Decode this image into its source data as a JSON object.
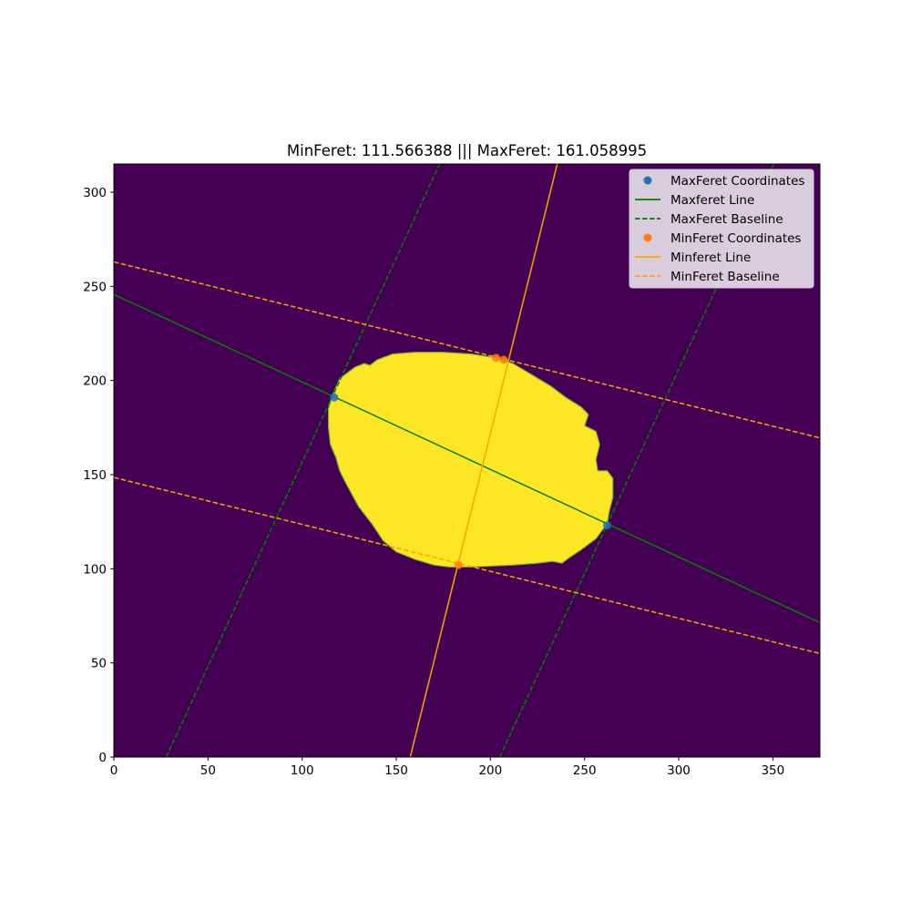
{
  "chart_data": {
    "type": "scatter",
    "title": "MinFeret: 111.566388 ||| MaxFeret: 161.058995",
    "xlabel": "",
    "ylabel": "",
    "xlim": [
      0,
      375
    ],
    "ylim": [
      0,
      315
    ],
    "x_ticks": [
      0,
      50,
      100,
      150,
      200,
      250,
      300,
      350
    ],
    "y_ticks": [
      0,
      50,
      100,
      150,
      200,
      250,
      300
    ],
    "grid": false,
    "legend_position": "top-right",
    "colors": {
      "background": "#440154",
      "region": "#fde725",
      "maxferet_points": "#1f77b4",
      "maxferet_lines": "#008000",
      "minferet_points": "#ff7f0e",
      "minferet_lines": "#ffa500"
    },
    "region_outline": [
      [
        116,
        192
      ],
      [
        120,
        201
      ],
      [
        128,
        207
      ],
      [
        133,
        209
      ],
      [
        136,
        208
      ],
      [
        140,
        211
      ],
      [
        148,
        214
      ],
      [
        160,
        215
      ],
      [
        175,
        215
      ],
      [
        190,
        214
      ],
      [
        203,
        212
      ],
      [
        212,
        209
      ],
      [
        222,
        203
      ],
      [
        232,
        197
      ],
      [
        240,
        191
      ],
      [
        248,
        186
      ],
      [
        252,
        182
      ],
      [
        250,
        176
      ],
      [
        256,
        173
      ],
      [
        258,
        166
      ],
      [
        256,
        158
      ],
      [
        257,
        152
      ],
      [
        262,
        152
      ],
      [
        265,
        148
      ],
      [
        265,
        138
      ],
      [
        263,
        130
      ],
      [
        262,
        124
      ],
      [
        256,
        116
      ],
      [
        248,
        110
      ],
      [
        242,
        106
      ],
      [
        238,
        103
      ],
      [
        233,
        104
      ],
      [
        225,
        103
      ],
      [
        212,
        102
      ],
      [
        190,
        101
      ],
      [
        178,
        101
      ],
      [
        170,
        102
      ],
      [
        160,
        105
      ],
      [
        150,
        109
      ],
      [
        143,
        115
      ],
      [
        137,
        124
      ],
      [
        130,
        133
      ],
      [
        123,
        146
      ],
      [
        120,
        152
      ],
      [
        118,
        159
      ],
      [
        115,
        166
      ],
      [
        114,
        175
      ],
      [
        114,
        185
      ]
    ],
    "series": [
      {
        "name": "MaxFeret Coordinates",
        "kind": "points",
        "points": [
          [
            117,
            191
          ],
          [
            262,
            123
          ]
        ]
      },
      {
        "name": "Maxferet Line",
        "kind": "line",
        "points": [
          [
            0,
            245.7
          ],
          [
            375,
            71.4
          ]
        ]
      },
      {
        "name": "MaxFeret Baseline",
        "kind": "dashed",
        "points": [
          [
            27.8,
            0
          ],
          [
            173,
            315
          ]
        ]
      },
      {
        "name": "MaxFeret Baseline 2",
        "kind": "dashed",
        "points": [
          [
            205,
            0
          ],
          [
            350.4,
            315
          ]
        ]
      },
      {
        "name": "MinFeret Coordinates",
        "kind": "points",
        "points": [
          [
            183,
            102
          ],
          [
            203,
            212
          ],
          [
            207,
            211
          ]
        ]
      },
      {
        "name": "Minferet Line",
        "kind": "line",
        "points": [
          [
            157.4,
            0
          ],
          [
            235.5,
            315
          ]
        ]
      },
      {
        "name": "MinFeret Baseline",
        "kind": "dashed",
        "points": [
          [
            0,
            263
          ],
          [
            375,
            169.5
          ]
        ]
      },
      {
        "name": "MinFeret Baseline 2",
        "kind": "dashed",
        "points": [
          [
            0,
            148.5
          ],
          [
            375,
            55
          ]
        ]
      }
    ],
    "legend": [
      {
        "label": "MaxFeret Coordinates",
        "marker": "point",
        "color": "#1f77b4"
      },
      {
        "label": "Maxferet Line",
        "marker": "line",
        "color": "#008000"
      },
      {
        "label": "MaxFeret Baseline",
        "marker": "dashed",
        "color": "#008000"
      },
      {
        "label": "MinFeret Coordinates",
        "marker": "point",
        "color": "#ff7f0e"
      },
      {
        "label": "Minferet Line",
        "marker": "line",
        "color": "#ffa500"
      },
      {
        "label": "MinFeret Baseline",
        "marker": "dashed",
        "color": "#ffa500"
      }
    ]
  }
}
